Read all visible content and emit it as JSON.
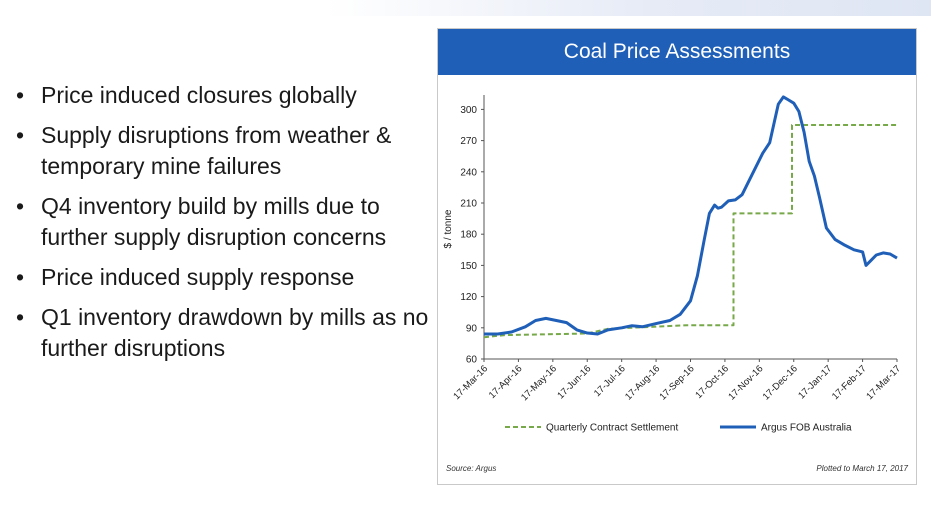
{
  "bullets": [
    "Price induced closures globally",
    "Supply disruptions from weather & temporary mine failures",
    "Q4 inventory build by mills due to further supply disruption concerns",
    "Price induced supply response",
    "Q1 inventory drawdown by mills as no further disruptions"
  ],
  "chart_data": {
    "type": "line",
    "title": "Coal Price Assessments",
    "ylabel": "$ / tonne",
    "xlabel": "",
    "ylim": [
      60,
      310
    ],
    "yticks": [
      60,
      90,
      120,
      150,
      180,
      210,
      240,
      270,
      300
    ],
    "xticks": [
      "17-Mar-16",
      "17-Apr-16",
      "17-May-16",
      "17-Jun-16",
      "17-Jul-16",
      "17-Aug-16",
      "17-Sep-16",
      "17-Oct-16",
      "17-Nov-16",
      "17-Dec-16",
      "17-Jan-17",
      "17-Feb-17",
      "17-Mar-17"
    ],
    "grid": false,
    "legend_position": "bottom",
    "series": [
      {
        "name": "Quarterly Contract Settlement",
        "style": "dashed",
        "color": "#77a84a",
        "points": [
          [
            0,
            81
          ],
          [
            0.6,
            83
          ],
          [
            3,
            84.5
          ],
          [
            3.6,
            89
          ],
          [
            5.9,
            92.5
          ],
          [
            7.25,
            92.5
          ],
          [
            7.25,
            200
          ],
          [
            8.95,
            200
          ],
          [
            8.95,
            285
          ],
          [
            12,
            285
          ]
        ]
      },
      {
        "name": "Argus FOB Australia",
        "style": "solid",
        "color": "#1f5fb8",
        "points": [
          [
            0,
            84
          ],
          [
            0.4,
            84
          ],
          [
            0.8,
            86
          ],
          [
            1.2,
            91
          ],
          [
            1.5,
            97
          ],
          [
            1.8,
            99
          ],
          [
            2.1,
            97
          ],
          [
            2.4,
            95
          ],
          [
            2.7,
            88
          ],
          [
            3,
            85
          ],
          [
            3.3,
            84
          ],
          [
            3.6,
            88
          ],
          [
            4,
            90
          ],
          [
            4.3,
            92
          ],
          [
            4.6,
            91
          ],
          [
            5,
            94
          ],
          [
            5.4,
            97
          ],
          [
            5.7,
            103
          ],
          [
            6,
            116
          ],
          [
            6.2,
            140
          ],
          [
            6.4,
            175
          ],
          [
            6.55,
            200
          ],
          [
            6.7,
            208
          ],
          [
            6.8,
            205
          ],
          [
            6.9,
            206
          ],
          [
            7.1,
            212
          ],
          [
            7.3,
            213
          ],
          [
            7.5,
            218
          ],
          [
            7.8,
            238
          ],
          [
            8.1,
            258
          ],
          [
            8.3,
            268
          ],
          [
            8.45,
            290
          ],
          [
            8.55,
            305
          ],
          [
            8.7,
            312
          ],
          [
            8.85,
            309
          ],
          [
            9,
            306
          ],
          [
            9.15,
            298
          ],
          [
            9.3,
            278
          ],
          [
            9.45,
            250
          ],
          [
            9.6,
            236
          ],
          [
            9.75,
            215
          ],
          [
            9.95,
            186
          ],
          [
            10.2,
            175
          ],
          [
            10.45,
            170
          ],
          [
            10.75,
            165
          ],
          [
            11.0,
            163
          ],
          [
            11.1,
            150
          ],
          [
            11.25,
            155
          ],
          [
            11.4,
            160
          ],
          [
            11.6,
            162
          ],
          [
            11.8,
            161
          ],
          [
            12,
            157
          ]
        ]
      }
    ],
    "source": "Source: Argus",
    "note": "Plotted to March 17, 2017"
  }
}
